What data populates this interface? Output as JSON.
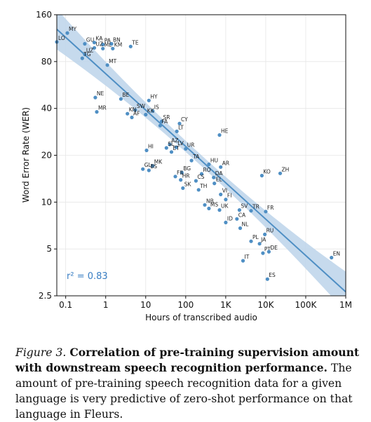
{
  "caption": {
    "label": "Figure 3.",
    "bold": "Correlation of pre-training supervision amount with downstream speech recognition performance.",
    "text": "The amount of pre-training speech recognition data for a given language is very predictive of zero-shot performance on that language in Fleurs."
  },
  "chart_data": {
    "type": "scatter",
    "xlabel": "Hours of transcribed audio",
    "ylabel": "Word Error Rate (WER)",
    "xscale": "log",
    "yscale": "log",
    "xlim": [
      0.06,
      1000000
    ],
    "ylim": [
      2.5,
      160
    ],
    "xticks": [
      0.1,
      1,
      10,
      100,
      1000,
      10000,
      100000,
      1000000
    ],
    "xtick_labels": [
      "0.1",
      "1",
      "10",
      "100",
      "1K",
      "10K",
      "100K",
      "1M"
    ],
    "yticks": [
      2.5,
      5,
      10,
      20,
      40,
      80,
      160
    ],
    "ytick_labels": [
      "2.5",
      "5",
      "10",
      "20",
      "40",
      "80",
      "160"
    ],
    "grid": true,
    "annotation": "r² = 0.83",
    "fit_line": {
      "x": [
        0.06,
        1000000
      ],
      "y": [
        129,
        2.65
      ]
    },
    "color": "#4f8fc4",
    "points": [
      {
        "label": "MY",
        "x": 0.11,
        "y": 122
      },
      {
        "label": "LO",
        "x": 0.06,
        "y": 107
      },
      {
        "label": "GU",
        "x": 0.3,
        "y": 104
      },
      {
        "label": "KA",
        "x": 0.52,
        "y": 106
      },
      {
        "label": "PA",
        "x": 0.85,
        "y": 103
      },
      {
        "label": "BN",
        "x": 1.4,
        "y": 104
      },
      {
        "label": "UZ",
        "x": 0.52,
        "y": 98
      },
      {
        "label": "ML",
        "x": 0.85,
        "y": 97
      },
      {
        "label": "KM",
        "x": 1.5,
        "y": 97
      },
      {
        "label": "TE",
        "x": 4.2,
        "y": 100
      },
      {
        "label": "UZ",
        "x": 0.3,
        "y": 89
      },
      {
        "label": "TG",
        "x": 0.26,
        "y": 84
      },
      {
        "label": "MT",
        "x": 1.1,
        "y": 76
      },
      {
        "label": "NE",
        "x": 0.55,
        "y": 47
      },
      {
        "label": "BE",
        "x": 2.4,
        "y": 46
      },
      {
        "label": "HY",
        "x": 12,
        "y": 45
      },
      {
        "label": "MR",
        "x": 0.6,
        "y": 38
      },
      {
        "label": "SW",
        "x": 5.5,
        "y": 39
      },
      {
        "label": "IS",
        "x": 15,
        "y": 38.5
      },
      {
        "label": "KN",
        "x": 3.5,
        "y": 37
      },
      {
        "label": "KK",
        "x": 10,
        "y": 36.5
      },
      {
        "label": "AF",
        "x": 4.5,
        "y": 35
      },
      {
        "label": "SR",
        "x": 25,
        "y": 33
      },
      {
        "label": "CY",
        "x": 70,
        "y": 32
      },
      {
        "label": "FA",
        "x": 23,
        "y": 31
      },
      {
        "label": "LT",
        "x": 60,
        "y": 28.5
      },
      {
        "label": "HE",
        "x": 700,
        "y": 27
      },
      {
        "label": "AZ",
        "x": 40,
        "y": 23.5
      },
      {
        "label": "LV",
        "x": 58,
        "y": 22.5
      },
      {
        "label": "UR",
        "x": 100,
        "y": 22
      },
      {
        "label": "SL",
        "x": 33,
        "y": 22.3
      },
      {
        "label": "HI",
        "x": 10.5,
        "y": 21.5
      },
      {
        "label": "ET",
        "x": 44,
        "y": 21
      },
      {
        "label": "TA",
        "x": 140,
        "y": 18.5
      },
      {
        "label": "HU",
        "x": 380,
        "y": 17.5
      },
      {
        "label": "MK",
        "x": 15,
        "y": 17.1
      },
      {
        "label": "AR",
        "x": 750,
        "y": 16.8
      },
      {
        "label": "GL",
        "x": 8.5,
        "y": 16.3
      },
      {
        "label": "BS",
        "x": 12,
        "y": 16
      },
      {
        "label": "BG",
        "x": 80,
        "y": 15.5
      },
      {
        "label": "RO",
        "x": 250,
        "y": 15.2
      },
      {
        "label": "KO",
        "x": 8000,
        "y": 14.8
      },
      {
        "label": "ZH",
        "x": 23000,
        "y": 15.3
      },
      {
        "label": "FIL",
        "x": 55,
        "y": 14.6
      },
      {
        "label": "DA",
        "x": 500,
        "y": 14.4
      },
      {
        "label": "HR",
        "x": 75,
        "y": 13.9
      },
      {
        "label": "CS",
        "x": 180,
        "y": 13.7
      },
      {
        "label": "EL",
        "x": 520,
        "y": 13.2
      },
      {
        "label": "SK",
        "x": 85,
        "y": 12.3
      },
      {
        "label": "TH",
        "x": 210,
        "y": 12
      },
      {
        "label": "VI",
        "x": 750,
        "y": 11.2
      },
      {
        "label": "FI",
        "x": 1000,
        "y": 10.4
      },
      {
        "label": "NB",
        "x": 300,
        "y": 9.6
      },
      {
        "label": "MS",
        "x": 380,
        "y": 9.1
      },
      {
        "label": "UK",
        "x": 700,
        "y": 8.9
      },
      {
        "label": "SV",
        "x": 2200,
        "y": 8.9
      },
      {
        "label": "TR",
        "x": 4300,
        "y": 8.8
      },
      {
        "label": "FR",
        "x": 10000,
        "y": 8.7
      },
      {
        "label": "CA",
        "x": 1900,
        "y": 7.8
      },
      {
        "label": "ID",
        "x": 1000,
        "y": 7.4
      },
      {
        "label": "NL",
        "x": 2300,
        "y": 6.8
      },
      {
        "label": "RU",
        "x": 9500,
        "y": 6.2
      },
      {
        "label": "PL",
        "x": 4300,
        "y": 5.6
      },
      {
        "label": "JA",
        "x": 7000,
        "y": 5.4
      },
      {
        "label": "PT",
        "x": 8500,
        "y": 4.7
      },
      {
        "label": "DE",
        "x": 12000,
        "y": 4.8
      },
      {
        "label": "EN",
        "x": 440000,
        "y": 4.4
      },
      {
        "label": "IT",
        "x": 2700,
        "y": 4.2
      },
      {
        "label": "ES",
        "x": 11000,
        "y": 3.2
      }
    ]
  }
}
